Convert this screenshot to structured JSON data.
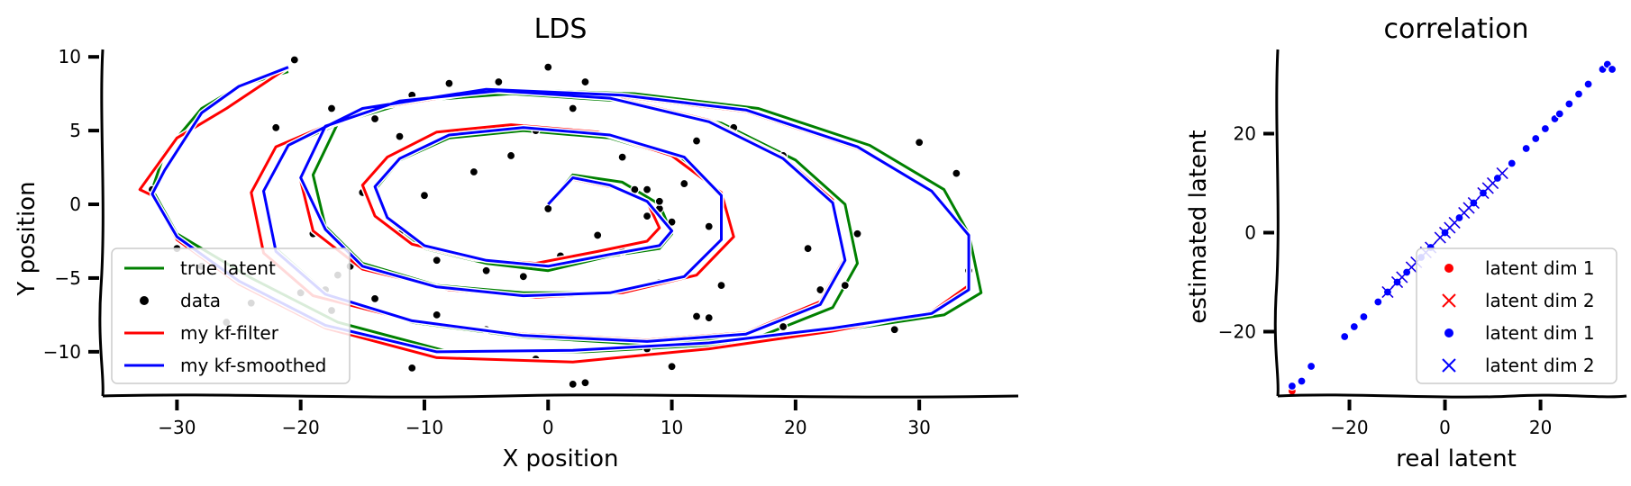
{
  "chart_data": [
    {
      "type": "line",
      "title": "LDS",
      "xlabel": "X position",
      "ylabel": "Y position",
      "xlim": [
        -36,
        38
      ],
      "ylim": [
        -13,
        10.5
      ],
      "xticks": [
        -30,
        -20,
        -10,
        0,
        10,
        20,
        30
      ],
      "yticks": [
        -10,
        -5,
        0,
        5,
        10
      ],
      "xtick_labels": [
        "−30",
        "−20",
        "−10",
        "0",
        "10",
        "20",
        "30"
      ],
      "ytick_labels": [
        "−10",
        "−5",
        "0",
        "5",
        "10"
      ],
      "legend_position": "lower-left",
      "series": [
        {
          "name": "true latent",
          "color": "#008000",
          "style": "line",
          "x": [
            0,
            2,
            6,
            9,
            10,
            9,
            5,
            0,
            -5,
            -10,
            -13,
            -14,
            -12,
            -8,
            -2,
            5,
            11,
            14,
            14,
            11,
            5,
            -2,
            -9,
            -15,
            -18,
            -19,
            -17,
            -11,
            -3,
            6,
            14,
            20,
            24,
            25,
            23,
            17,
            8,
            -2,
            -11,
            -18,
            -22,
            -23,
            -21,
            -14,
            -4,
            7,
            17,
            26,
            32,
            34,
            35,
            32,
            24,
            14,
            3,
            -8,
            -17,
            -24,
            -30,
            -32,
            -31,
            -28,
            -25,
            -21
          ],
          "y": [
            0,
            2,
            1.5,
            0,
            -2,
            -3,
            -3.5,
            -4.5,
            -4,
            -3,
            -1,
            1,
            3,
            4.5,
            5,
            4.5,
            3,
            0.5,
            -2.5,
            -5,
            -6,
            -6,
            -5.5,
            -4,
            -1.5,
            2,
            5.5,
            7,
            7.5,
            7,
            5.5,
            3,
            0,
            -4,
            -7,
            -9,
            -9.5,
            -9,
            -8,
            -6,
            -3,
            1,
            4,
            6.5,
            7.8,
            7.5,
            6.5,
            4,
            1,
            -2,
            -6,
            -7.5,
            -8.5,
            -9.5,
            -10,
            -10,
            -8,
            -5,
            -2,
            1,
            3.5,
            6.5,
            8,
            9
          ]
        },
        {
          "name": "data",
          "color": "#000000",
          "style": "points",
          "x": [
            -20.5,
            -22,
            -17.5,
            -14,
            -12,
            -11,
            -8,
            -4,
            0,
            3,
            2,
            -1,
            -3,
            -6,
            -10,
            -15,
            -19,
            -18,
            -16,
            -12,
            -9,
            -5,
            -2,
            1,
            4,
            8,
            11,
            13,
            14,
            12,
            9,
            6,
            7,
            9,
            10,
            12,
            15,
            19,
            21,
            24,
            25,
            22,
            19,
            13,
            8,
            3,
            -1,
            -5,
            -9,
            -14,
            -17,
            -20,
            -24,
            -26,
            -28,
            -30,
            -32,
            30,
            33,
            34,
            28,
            19,
            10,
            2,
            -11,
            -17.5,
            8,
            9,
            6,
            0
          ],
          "y": [
            9.8,
            5.2,
            6.5,
            5.8,
            4.6,
            7.4,
            8.2,
            8.3,
            9.3,
            8.3,
            6.5,
            5,
            3.3,
            2.2,
            0.6,
            0.8,
            -2,
            -5.8,
            -4.2,
            -2,
            -3.8,
            -4.5,
            -4.9,
            -3.5,
            -2.1,
            -0.8,
            1.4,
            -1.5,
            -5.5,
            -7.6,
            -5.3,
            -3.2,
            1,
            -0.3,
            -1.2,
            4.3,
            5.2,
            3.3,
            -3,
            -5.5,
            -2,
            -5.8,
            -8.3,
            -7.7,
            -9.8,
            -12.1,
            -10.5,
            -8.5,
            -7.5,
            -6.4,
            -4.8,
            -6,
            -6.7,
            -8,
            -4.2,
            -3,
            1,
            4.2,
            2.1,
            -4.5,
            -8.5,
            -8.3,
            -11,
            -12.2,
            -11.1,
            -7.2,
            1,
            0.2,
            3.2,
            -0.3
          ]
        },
        {
          "name": "my kf-filter",
          "color": "#ff0000",
          "style": "line",
          "x": [
            0,
            2,
            5,
            8,
            9,
            8,
            4,
            -1,
            -6,
            -11,
            -14,
            -15,
            -13,
            -9,
            -3,
            4,
            10,
            14,
            15,
            12,
            6,
            -1,
            -8,
            -15,
            -19,
            -20,
            -18,
            -12,
            -4,
            5,
            13,
            19,
            23,
            24,
            22,
            16,
            8,
            -2,
            -11,
            -19,
            -23,
            -24,
            -22,
            -15,
            -5,
            6,
            16,
            25,
            31,
            34,
            34,
            31,
            23,
            13,
            2,
            -9,
            -18,
            -25,
            -30,
            -32,
            -33,
            -30,
            -26,
            -21
          ],
          "y": [
            0,
            1.7,
            1.2,
            0.2,
            -1.6,
            -2.5,
            -3.2,
            -4,
            -3.7,
            -2.7,
            -0.8,
            1.3,
            3.2,
            4.9,
            5.4,
            4.9,
            3.3,
            0.8,
            -2.2,
            -4.8,
            -6,
            -6.3,
            -5.8,
            -4.4,
            -1.8,
            1.6,
            5.2,
            7,
            7.8,
            7.3,
            5.7,
            3.2,
            0.3,
            -3.6,
            -6.6,
            -8.7,
            -9.2,
            -8.8,
            -7.9,
            -6.2,
            -3.3,
            0.8,
            3.9,
            6.4,
            7.7,
            7.3,
            6.3,
            3.8,
            0.9,
            -2.2,
            -5.5,
            -7.3,
            -8.6,
            -9.8,
            -10.7,
            -10.4,
            -8.4,
            -5.4,
            -2.4,
            0.6,
            1,
            4.5,
            6.5,
            9.3
          ]
        },
        {
          "name": "my kf-smoothed",
          "color": "#0000ff",
          "style": "line",
          "x": [
            0,
            2,
            5,
            8,
            10,
            9,
            5,
            0,
            -5,
            -10,
            -13,
            -14,
            -12,
            -8,
            -2,
            5,
            11,
            14,
            14,
            11,
            5,
            -2,
            -9,
            -15,
            -18,
            -20,
            -18,
            -12,
            -4,
            5,
            13,
            19,
            23,
            24,
            22,
            16,
            8,
            -2,
            -11,
            -18,
            -22,
            -23,
            -21,
            -15,
            -5,
            6,
            16,
            25,
            31,
            34,
            34,
            31,
            23,
            13,
            2,
            -9,
            -18,
            -25,
            -30,
            -32,
            -31,
            -28,
            -25,
            -21
          ],
          "y": [
            0,
            1.8,
            1.3,
            0.2,
            -1.8,
            -2.8,
            -3.4,
            -4.2,
            -3.8,
            -2.8,
            -0.9,
            1.2,
            3.1,
            4.7,
            5.2,
            4.7,
            3.2,
            0.6,
            -2.4,
            -4.9,
            -6,
            -6.2,
            -5.6,
            -4.2,
            -1.7,
            1.8,
            5.3,
            7,
            7.7,
            7.2,
            5.6,
            3.1,
            0.1,
            -3.8,
            -6.8,
            -8.8,
            -9.3,
            -8.9,
            -7.9,
            -6.1,
            -3.2,
            0.9,
            4,
            6.5,
            7.8,
            7.4,
            6.4,
            3.9,
            0.9,
            -2.1,
            -5.8,
            -7.4,
            -8.4,
            -9.4,
            -9.9,
            -10,
            -8.2,
            -5.2,
            -2.2,
            0.7,
            2.3,
            6.2,
            8,
            9.3
          ]
        }
      ]
    },
    {
      "type": "scatter",
      "title": "correlation",
      "xlabel": "real latent",
      "ylabel": "estimated latent",
      "xlim": [
        -35,
        38
      ],
      "ylim": [
        -33,
        37
      ],
      "xticks": [
        -20,
        0,
        20
      ],
      "yticks": [
        -20,
        0,
        20
      ],
      "xtick_labels": [
        "−20",
        "0",
        "20"
      ],
      "ytick_labels": [
        "−20",
        "0",
        "20"
      ],
      "legend_position": "lower-right",
      "series": [
        {
          "name": "latent dim 1",
          "color": "#ff0000",
          "marker": "dot",
          "x": [
            -32,
            -30,
            -28,
            -21,
            -19,
            -17,
            -14,
            -12,
            -10,
            -8,
            -5,
            -3,
            0,
            3,
            6,
            8,
            11,
            14,
            17,
            19,
            21,
            23,
            24,
            26,
            28,
            30,
            33,
            34,
            35
          ],
          "y": [
            -32,
            -30,
            -27,
            -21,
            -19,
            -17,
            -14,
            -12,
            -10,
            -8,
            -5,
            -3,
            0,
            3,
            6,
            8,
            11,
            14,
            17,
            19,
            21,
            23,
            24,
            26,
            28,
            30,
            33,
            34,
            33
          ]
        },
        {
          "name": "latent dim 2",
          "color": "#ff0000",
          "marker": "cross",
          "x": [
            -12,
            -10,
            -9,
            -7,
            -6,
            -4,
            -3,
            -1,
            0,
            1,
            2,
            4,
            5,
            6,
            8,
            9,
            10,
            12
          ],
          "y": [
            -12,
            -10,
            -9,
            -7,
            -6,
            -4,
            -3,
            -1,
            0,
            1,
            2,
            4,
            5,
            6,
            8,
            9,
            10,
            12
          ]
        },
        {
          "name": "latent dim 1",
          "color": "#0000ff",
          "marker": "dot",
          "x": [
            -32,
            -30,
            -28,
            -21,
            -19,
            -17,
            -14,
            -12,
            -10,
            -8,
            -5,
            -3,
            0,
            3,
            6,
            8,
            11,
            14,
            17,
            19,
            21,
            23,
            24,
            26,
            28,
            30,
            33,
            34,
            35
          ],
          "y": [
            -31,
            -30,
            -27,
            -21,
            -19,
            -17,
            -14,
            -12,
            -10,
            -8,
            -5,
            -3,
            0,
            3,
            6,
            8,
            11,
            14,
            17,
            19,
            21,
            23,
            24,
            26,
            28,
            30,
            33,
            34,
            33
          ]
        },
        {
          "name": "latent dim 2",
          "color": "#0000ff",
          "marker": "cross",
          "x": [
            -12,
            -10,
            -9,
            -7,
            -6,
            -4,
            -3,
            -1,
            0,
            1,
            2,
            4,
            5,
            6,
            8,
            9,
            10,
            12
          ],
          "y": [
            -12,
            -10,
            -9,
            -7,
            -6,
            -4,
            -3,
            -1,
            0,
            1,
            2,
            4,
            5,
            6,
            8,
            9,
            10,
            12
          ]
        }
      ]
    }
  ]
}
